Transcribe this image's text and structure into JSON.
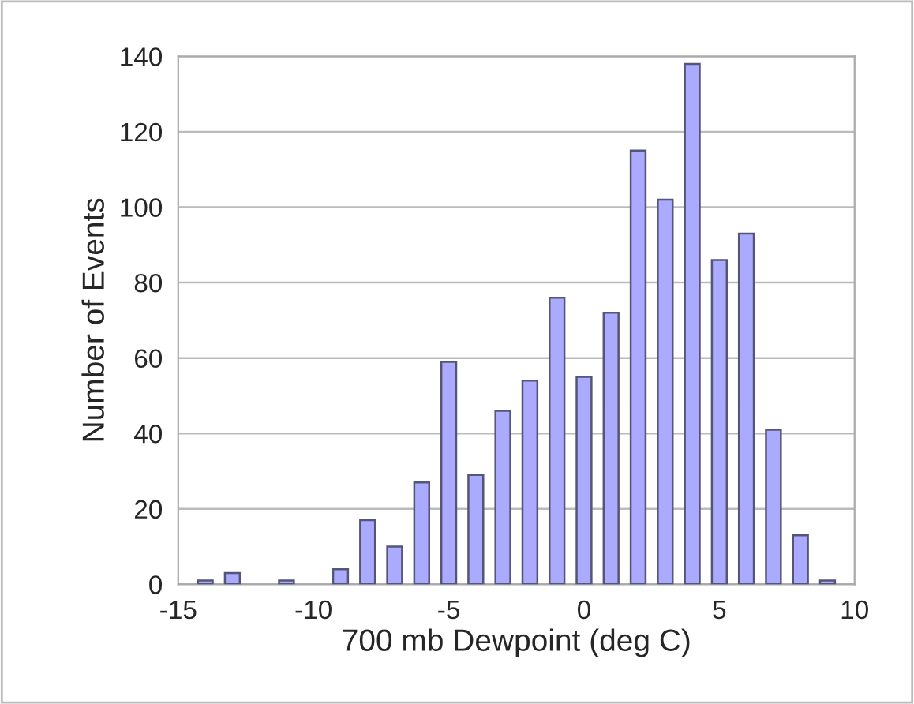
{
  "chart_data": {
    "type": "bar",
    "xlabel": "700 mb Dewpoint (deg C)",
    "ylabel": "Number of Events",
    "x": [
      -14,
      -13,
      -12,
      -11,
      -10,
      -9,
      -8,
      -7,
      -6,
      -5,
      -4,
      -3,
      -2,
      -1,
      0,
      1,
      2,
      3,
      4,
      5,
      6,
      7,
      8,
      9
    ],
    "values": [
      1,
      3,
      null,
      1,
      null,
      4,
      17,
      10,
      27,
      59,
      29,
      46,
      54,
      76,
      55,
      72,
      115,
      102,
      138,
      86,
      93,
      41,
      13,
      1
    ],
    "color": "#aaaaff",
    "xlim": [
      -15,
      10
    ],
    "xticks": [
      -15,
      -10,
      -5,
      0,
      5,
      10
    ],
    "ylim": [
      0,
      140
    ],
    "yticks": [
      0,
      20,
      40,
      60,
      80,
      100,
      120,
      140
    ],
    "grid": "y"
  }
}
